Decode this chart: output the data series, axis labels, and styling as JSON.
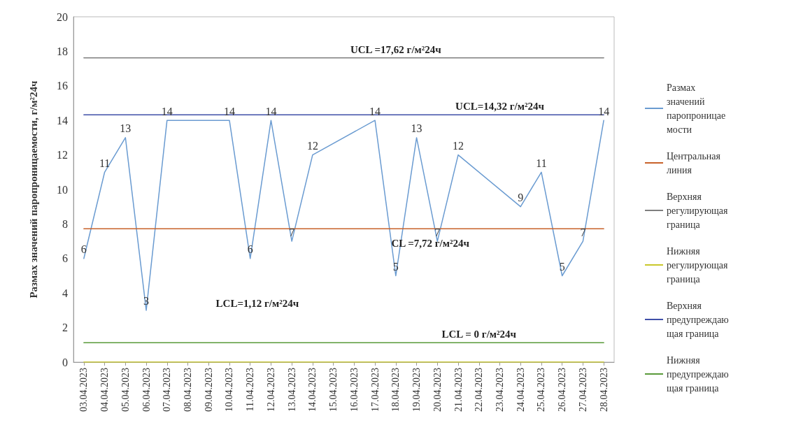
{
  "chart_data": {
    "type": "line",
    "ylabel": "Размах значений паропроницаемости, г/м²24ч",
    "categories": [
      "03.04.2023",
      "04.04.2023",
      "05.04.2023",
      "06.04.2023",
      "07.04.2023",
      "08.04.2023",
      "09.04.2023",
      "10.04.2023",
      "11.04.2023",
      "12.04.2023",
      "13.04.2023",
      "14.04.2023",
      "15.04.2023",
      "16.04.2023",
      "17.04.2023",
      "18.04.2023",
      "19.04.2023",
      "20.04.2023",
      "21.04.2023",
      "22.04.2023",
      "23.04.2023",
      "24.04.2023",
      "25.04.2023",
      "26.04.2023",
      "27.04.2023",
      "28.04.2023"
    ],
    "series": [
      {
        "name": "Размах значений паропроницаемости",
        "color": "#6a9bd1",
        "data_labels": true,
        "values": [
          6,
          11,
          13,
          3,
          14,
          null,
          null,
          14,
          6,
          14,
          7,
          12,
          null,
          null,
          14,
          5,
          13,
          7,
          12,
          null,
          null,
          9,
          11,
          5,
          7,
          14
        ]
      },
      {
        "name": "Центральная линия",
        "color": "#c8622a",
        "values": [
          7.72,
          7.72,
          7.72,
          7.72,
          7.72,
          7.72,
          7.72,
          7.72,
          7.72,
          7.72,
          7.72,
          7.72,
          7.72,
          7.72,
          7.72,
          7.72,
          7.72,
          7.72,
          7.72,
          7.72,
          7.72,
          7.72,
          7.72,
          7.72,
          7.72,
          7.72
        ]
      },
      {
        "name": "Верхняя регулирующая граница",
        "color": "#7f7f7f",
        "values": [
          17.62,
          17.62,
          17.62,
          17.62,
          17.62,
          17.62,
          17.62,
          17.62,
          17.62,
          17.62,
          17.62,
          17.62,
          17.62,
          17.62,
          17.62,
          17.62,
          17.62,
          17.62,
          17.62,
          17.62,
          17.62,
          17.62,
          17.62,
          17.62,
          17.62,
          17.62
        ]
      },
      {
        "name": "Нижняя регулирующая граница",
        "color": "#c9c82b",
        "values": [
          0,
          0,
          0,
          0,
          0,
          0,
          0,
          0,
          0,
          0,
          0,
          0,
          0,
          0,
          0,
          0,
          0,
          0,
          0,
          0,
          0,
          0,
          0,
          0,
          0,
          0
        ]
      },
      {
        "name": "Верхняя предупреждающая граница",
        "color": "#3f4fa8",
        "values": [
          14.32,
          14.32,
          14.32,
          14.32,
          14.32,
          14.32,
          14.32,
          14.32,
          14.32,
          14.32,
          14.32,
          14.32,
          14.32,
          14.32,
          14.32,
          14.32,
          14.32,
          14.32,
          14.32,
          14.32,
          14.32,
          14.32,
          14.32,
          14.32,
          14.32,
          14.32
        ]
      },
      {
        "name": "Нижняя предупреждающая граница",
        "color": "#5a9a3a",
        "values": [
          1.12,
          1.12,
          1.12,
          1.12,
          1.12,
          1.12,
          1.12,
          1.12,
          1.12,
          1.12,
          1.12,
          1.12,
          1.12,
          1.12,
          1.12,
          1.12,
          1.12,
          1.12,
          1.12,
          1.12,
          1.12,
          1.12,
          1.12,
          1.12,
          1.12,
          1.12
        ]
      }
    ],
    "annotations": [
      {
        "text": "UCL =17,62 г/м²24ч",
        "x": "18.04.2023",
        "y": 17.62
      },
      {
        "text": "UCL=14,32 г/м²24ч",
        "x": "23.04.2023",
        "y": 14.32
      },
      "CL =7,72 г/м²24ч",
      "LCL=1,12 г/м²24ч",
      {
        "text": "LCL = 0 г/м²24ч",
        "x": "22.04.2023",
        "y": 1.12
      }
    ],
    "ylim": [
      0,
      20
    ],
    "yticks": [
      0,
      2,
      4,
      6,
      8,
      10,
      12,
      14,
      16,
      18,
      20
    ],
    "grid": false,
    "legend": "right",
    "marker": "none",
    "line_style": "solid"
  }
}
